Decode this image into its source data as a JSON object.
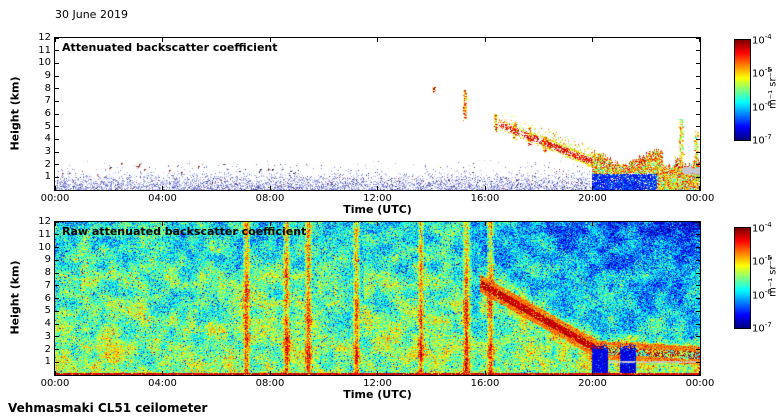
{
  "date": "30 June 2019",
  "footer": "Vehmasmaki CL51 ceilometer",
  "chart_data": {
    "type": "heatmap",
    "colormap": "jet",
    "panels": [
      {
        "name": "attenuated_backscatter",
        "title": "Attenuated backscatter coefficient",
        "x": {
          "label": "Time (UTC)",
          "ticks": [
            "00:00",
            "04:00",
            "08:00",
            "12:00",
            "16:00",
            "20:00",
            "00:00"
          ],
          "range_hours": [
            0,
            24
          ]
        },
        "y": {
          "label": "Height (km)",
          "ticks": [
            1,
            2,
            3,
            4,
            5,
            6,
            7,
            8,
            9,
            10,
            11,
            12
          ],
          "range_km": [
            0,
            12
          ]
        },
        "colorbar": {
          "unit": "m⁻¹ sr⁻¹",
          "scale": "log",
          "min": "1e-7",
          "max": "1e-4",
          "ticks": [
            {
              "base": "10",
              "exp": "-4"
            },
            {
              "base": "10",
              "exp": "-5"
            },
            {
              "base": "10",
              "exp": "-6"
            },
            {
              "base": "10",
              "exp": "-7"
            }
          ]
        },
        "features": {
          "background": "white",
          "boundary_layer_top_km": 1.3,
          "aerosol_descent": {
            "t_start_h": 16.5,
            "h_start_km": 5.2,
            "t_end_h": 20.0,
            "h_end_km": 2.2
          },
          "low_plume": {
            "t_start_h": 20.0,
            "t_end_h": 24.0,
            "top_km": 3.2
          },
          "cloud_streaks": [
            {
              "t_h": 14.1,
              "h0_km": 7.7,
              "h1_km": 8.1
            },
            {
              "t_h": 15.25,
              "h0_km": 5.5,
              "h1_km": 7.9
            },
            {
              "t_h": 16.4,
              "h0_km": 4.6,
              "h1_km": 6.0
            },
            {
              "t_h": 17.1,
              "h0_km": 4.0,
              "h1_km": 5.3
            },
            {
              "t_h": 17.65,
              "h0_km": 3.5,
              "h1_km": 5.0
            },
            {
              "t_h": 18.2,
              "h0_km": 3.0,
              "h1_km": 4.3
            },
            {
              "t_h": 23.3,
              "h0_km": 1.0,
              "h1_km": 5.6
            },
            {
              "t_h": 23.85,
              "h0_km": 1.0,
              "h1_km": 4.6
            }
          ]
        }
      },
      {
        "name": "raw_attenuated_backscatter",
        "title": "Raw attenuated backscatter coefficient",
        "x": {
          "label": "Time (UTC)",
          "ticks": [
            "00:00",
            "04:00",
            "08:00",
            "12:00",
            "16:00",
            "20:00",
            "00:00"
          ],
          "range_hours": [
            0,
            24
          ]
        },
        "y": {
          "label": "Height (km)",
          "ticks": [
            1,
            2,
            3,
            4,
            5,
            6,
            7,
            8,
            9,
            10,
            11,
            12
          ],
          "range_km": [
            0,
            12
          ]
        },
        "colorbar": {
          "unit": "m⁻¹ sr⁻¹",
          "scale": "log",
          "min": "1e-7",
          "max": "1e-4",
          "ticks": [
            {
              "base": "10",
              "exp": "-4"
            },
            {
              "base": "10",
              "exp": "-5"
            },
            {
              "base": "10",
              "exp": "-6"
            },
            {
              "base": "10",
              "exp": "-7"
            }
          ]
        },
        "features": {
          "background": "full-field speckle noise",
          "bright_columns_h": [
            7.1,
            8.6,
            9.4,
            11.2,
            13.6,
            15.3,
            16.2
          ],
          "aerosol_descent": {
            "t_start_h": 15.8,
            "h_start_km": 7.2,
            "t_end_h": 20.2,
            "h_end_km": 2.0
          },
          "dark_columns_h": [
            [
              19.95,
              20.55
            ],
            [
              21.0,
              21.6
            ]
          ],
          "surface_line_km": 0.2
        }
      }
    ]
  }
}
